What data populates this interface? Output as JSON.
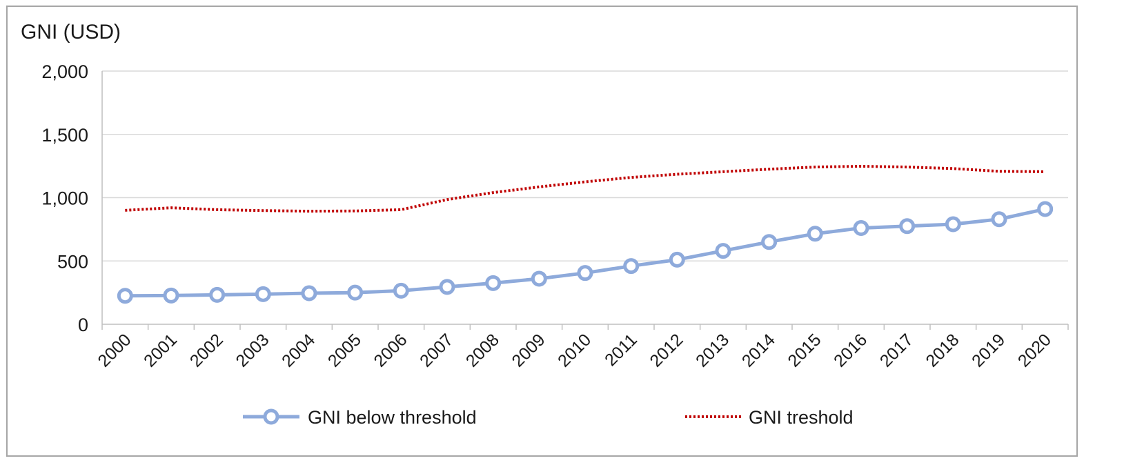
{
  "chart_data": {
    "type": "line",
    "title": "",
    "xlabel": "",
    "ylabel": "GNI (USD)",
    "x": [
      "2000",
      "2001",
      "2002",
      "2003",
      "2004",
      "2005",
      "2006",
      "2007",
      "2008",
      "2009",
      "2010",
      "2011",
      "2012",
      "2013",
      "2014",
      "2015",
      "2016",
      "2017",
      "2018",
      "2019",
      "2020"
    ],
    "ylim": [
      0,
      2000
    ],
    "yticks": [
      0,
      500,
      1000,
      1500,
      2000
    ],
    "ytick_labels": [
      "0",
      "500",
      "1,000",
      "1,500",
      "2,000"
    ],
    "grid": true,
    "legend_position": "bottom",
    "series": [
      {
        "name": "GNI below threshold",
        "style": "solid line with circle markers",
        "color": "#8eaadb",
        "values": [
          225,
          227,
          232,
          238,
          245,
          250,
          265,
          295,
          325,
          360,
          405,
          460,
          510,
          580,
          650,
          715,
          760,
          775,
          790,
          830,
          910
        ]
      },
      {
        "name": "GNI treshold",
        "style": "dotted line",
        "color": "#c00000",
        "values": [
          900,
          920,
          905,
          898,
          893,
          895,
          905,
          985,
          1040,
          1085,
          1125,
          1160,
          1185,
          1205,
          1225,
          1242,
          1248,
          1242,
          1230,
          1208,
          1205
        ]
      }
    ]
  }
}
